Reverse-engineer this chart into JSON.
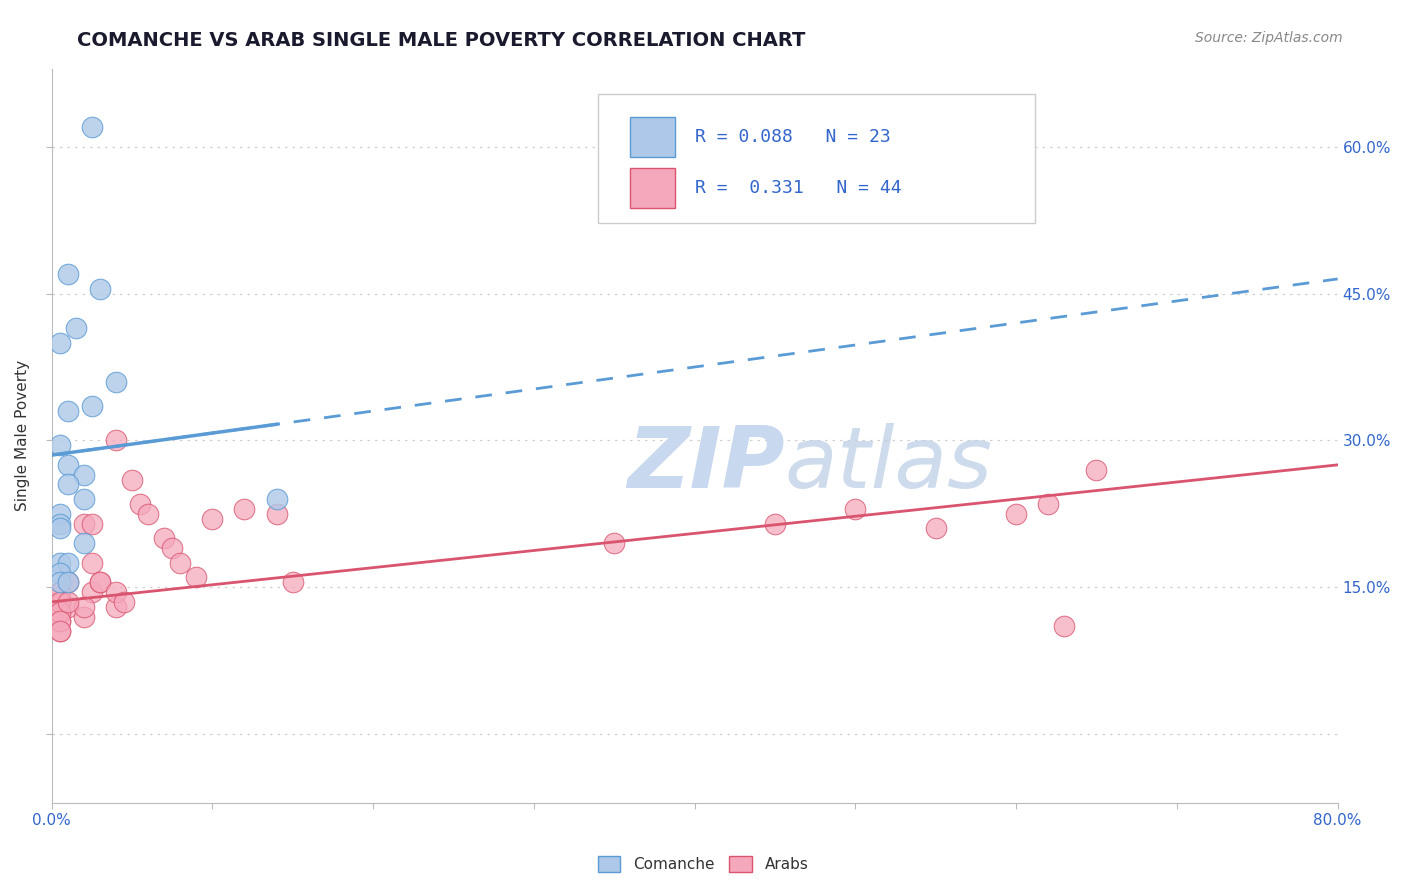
{
  "title": "COMANCHE VS ARAB SINGLE MALE POVERTY CORRELATION CHART",
  "source": "Source: ZipAtlas.com",
  "ylabel": "Single Male Poverty",
  "xlim": [
    0.0,
    0.8
  ],
  "ylim": [
    -0.07,
    0.68
  ],
  "yticks": [
    0.0,
    0.15,
    0.3,
    0.45,
    0.6
  ],
  "ytick_labels": [
    "",
    "15.0%",
    "30.0%",
    "45.0%",
    "60.0%"
  ],
  "comanche_R": 0.088,
  "comanche_N": 23,
  "arab_R": 0.331,
  "arab_N": 44,
  "comanche_color": "#adc8e8",
  "arab_color": "#f5a8bc",
  "comanche_line_color": "#5b9bd5",
  "arab_line_color": "#d9546e",
  "background_color": "#ffffff",
  "grid_color": "#d0d0d0",
  "title_color": "#1a1a2e",
  "axis_label_color": "#333333",
  "legend_text_color": "#3366cc",
  "tick_color": "#3366cc",
  "watermark_color": "#c8d8ee",
  "comanche_x": [
    0.025,
    0.01,
    0.03,
    0.015,
    0.005,
    0.04,
    0.025,
    0.01,
    0.005,
    0.01,
    0.02,
    0.01,
    0.02,
    0.14,
    0.005,
    0.005,
    0.005,
    0.02,
    0.005,
    0.01,
    0.005,
    0.005,
    0.01
  ],
  "comanche_y": [
    0.62,
    0.47,
    0.455,
    0.415,
    0.4,
    0.36,
    0.335,
    0.33,
    0.295,
    0.275,
    0.265,
    0.255,
    0.24,
    0.24,
    0.225,
    0.215,
    0.21,
    0.195,
    0.175,
    0.175,
    0.165,
    0.155,
    0.155
  ],
  "arab_x": [
    0.005,
    0.005,
    0.005,
    0.005,
    0.005,
    0.01,
    0.01,
    0.02,
    0.025,
    0.02,
    0.03,
    0.04,
    0.04,
    0.05,
    0.055,
    0.06,
    0.07,
    0.075,
    0.08,
    0.09,
    0.1,
    0.12,
    0.14,
    0.15,
    0.005,
    0.005,
    0.005,
    0.005,
    0.005,
    0.01,
    0.02,
    0.025,
    0.025,
    0.03,
    0.04,
    0.045,
    0.35,
    0.45,
    0.5,
    0.55,
    0.6,
    0.62,
    0.63,
    0.65
  ],
  "arab_y": [
    0.145,
    0.135,
    0.125,
    0.115,
    0.105,
    0.155,
    0.13,
    0.12,
    0.145,
    0.13,
    0.155,
    0.13,
    0.3,
    0.26,
    0.235,
    0.225,
    0.2,
    0.19,
    0.175,
    0.16,
    0.22,
    0.23,
    0.225,
    0.155,
    0.145,
    0.135,
    0.125,
    0.115,
    0.105,
    0.135,
    0.215,
    0.215,
    0.175,
    0.155,
    0.145,
    0.135,
    0.195,
    0.215,
    0.23,
    0.21,
    0.225,
    0.235,
    0.11,
    0.27
  ]
}
